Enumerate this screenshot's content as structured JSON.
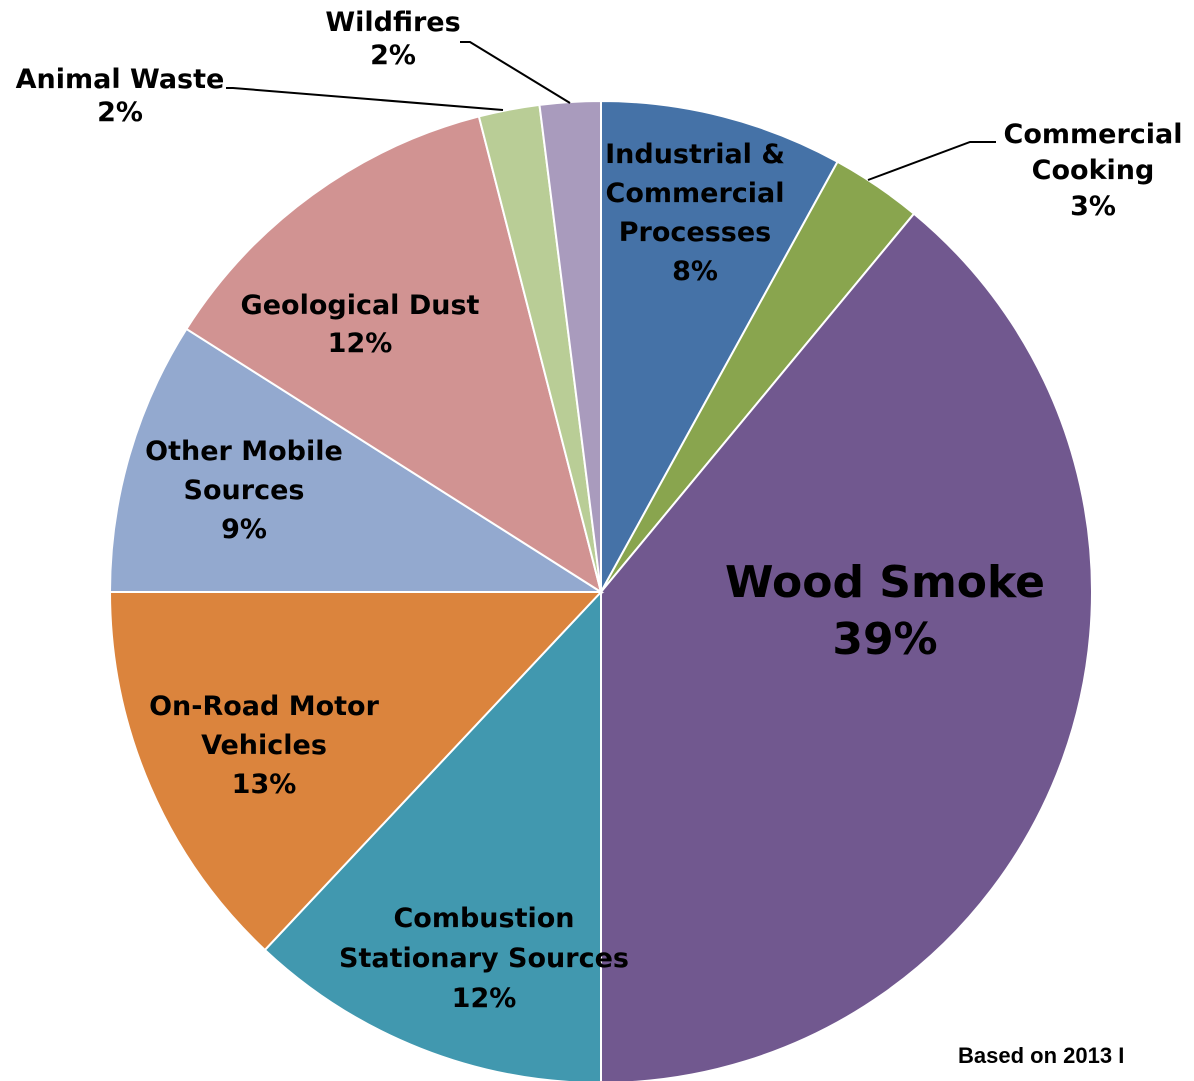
{
  "chart_data": {
    "type": "pie",
    "title": "",
    "start_angle_deg": 0,
    "direction": "clockwise",
    "slices": [
      {
        "label": [
          "Industrial &",
          "Commercial",
          "Processes"
        ],
        "value": 8,
        "pct_text": "8%",
        "color": "#4572A7"
      },
      {
        "label": [
          "Commercial",
          "Cooking"
        ],
        "value": 3,
        "pct_text": "3%",
        "color": "#89A54E"
      },
      {
        "label": [
          "Wood Smoke"
        ],
        "value": 39,
        "pct_text": "39%",
        "color": "#71588F"
      },
      {
        "label": [
          "Combustion",
          "Stationary Sources"
        ],
        "value": 12,
        "pct_text": "12%",
        "color": "#4198AF"
      },
      {
        "label": [
          "On-Road Motor",
          "Vehicles"
        ],
        "value": 13,
        "pct_text": "13%",
        "color": "#DB843D"
      },
      {
        "label": [
          "Other Mobile",
          "Sources"
        ],
        "value": 9,
        "pct_text": "9%",
        "color": "#93A9CF"
      },
      {
        "label": [
          "Geological Dust"
        ],
        "value": 12,
        "pct_text": "12%",
        "color": "#D19392"
      },
      {
        "label": [
          "Animal Waste"
        ],
        "value": 2,
        "pct_text": "2%",
        "color": "#B9CD96"
      },
      {
        "label": [
          "Wildfires"
        ],
        "value": 2,
        "pct_text": "2%",
        "color": "#A99BBD"
      }
    ],
    "note": "Based on 2013 I"
  }
}
